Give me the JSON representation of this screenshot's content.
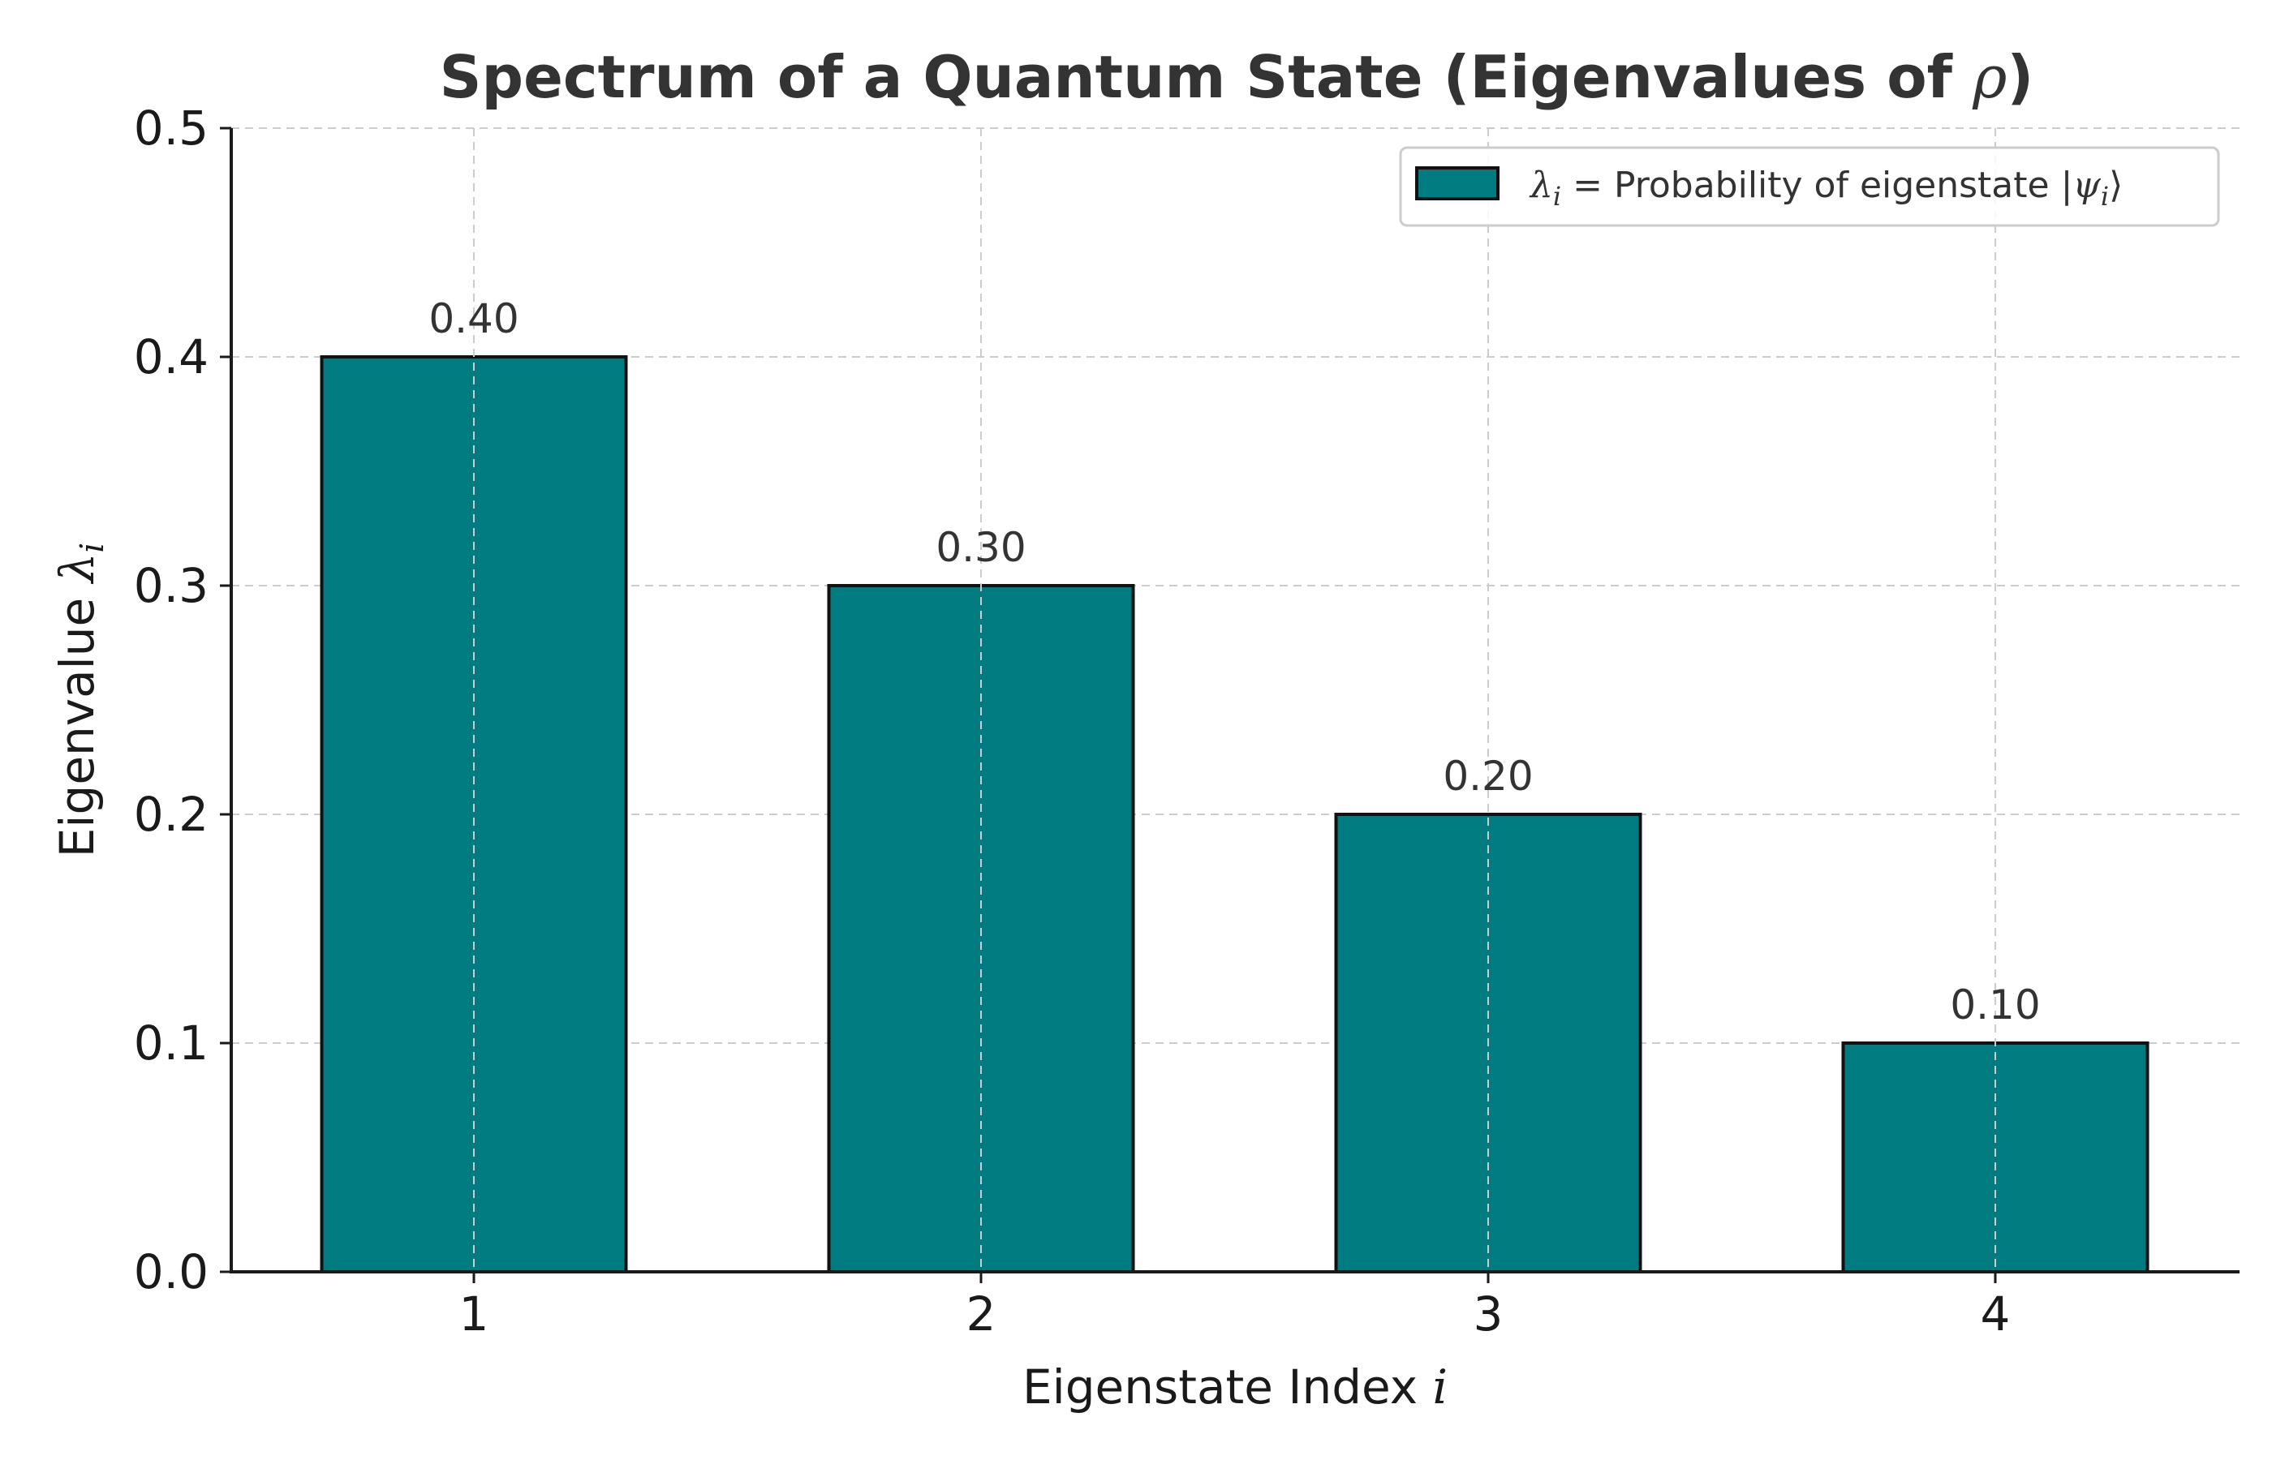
{
  "chart_data": {
    "type": "bar",
    "title": {
      "text": "Spectrum of a Quantum State (Eigenvalues of ",
      "symbol": "ρ",
      "suffix": ")"
    },
    "xlabel": {
      "text": "Eigenstate Index ",
      "symbol": "i"
    },
    "ylabel": {
      "text": "Eigenvalue ",
      "symbol": "λ",
      "subscript": "i"
    },
    "categories": [
      "1",
      "2",
      "3",
      "4"
    ],
    "values": [
      0.4,
      0.3,
      0.2,
      0.1
    ],
    "data_labels": [
      "0.40",
      "0.30",
      "0.20",
      "0.10"
    ],
    "ylim": [
      0,
      0.5
    ],
    "yticks": [
      0.0,
      0.1,
      0.2,
      0.3,
      0.4,
      0.5
    ],
    "ytick_labels": [
      "0.0",
      "0.1",
      "0.2",
      "0.3",
      "0.4",
      "0.5"
    ],
    "grid": true,
    "legend": {
      "placement": "top-right",
      "symbol": "λ",
      "subscript": "i",
      "text": " = Probability of eigenstate |",
      "ket_symbol": "ψ",
      "ket_subscript": "i",
      "ket_close": "⟩"
    },
    "bar_color": "#007b7f",
    "edge_color": "#111111"
  }
}
